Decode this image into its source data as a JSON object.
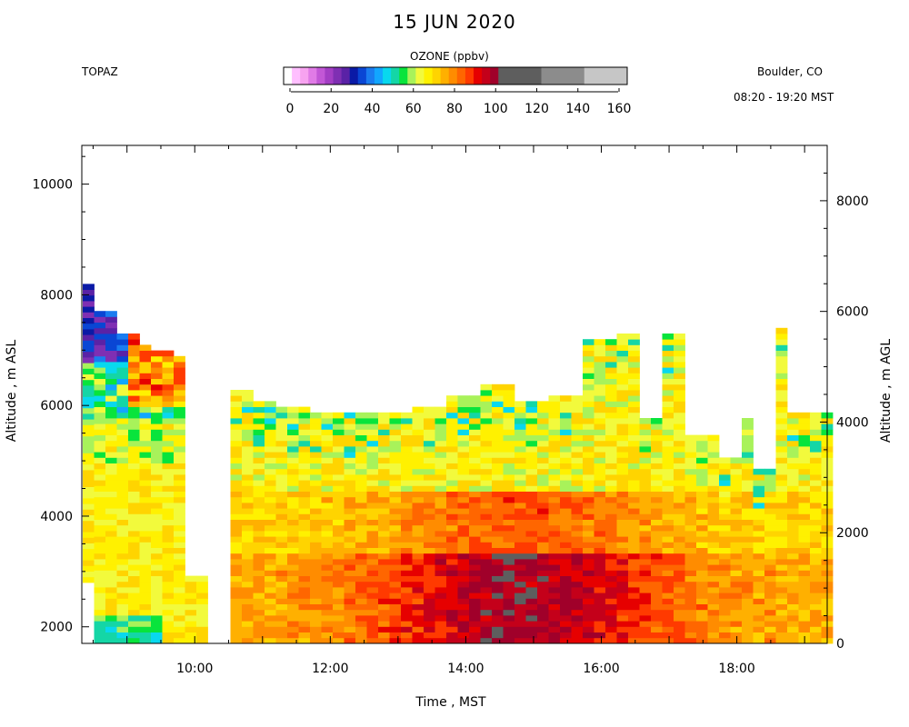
{
  "header": {
    "title": "15 JUN 2020",
    "instrument": "TOPAZ",
    "location": "Boulder, CO",
    "time_range": "08:20 - 19:20 MST"
  },
  "colorbar": {
    "label": "OZONE (ppbv)",
    "ticks": [
      "0",
      "20",
      "40",
      "60",
      "80",
      "100",
      "120",
      "140",
      "160"
    ],
    "colors": [
      "#ffffff",
      "#ffbfff",
      "#f7a3f0",
      "#e07be6",
      "#c257d6",
      "#a33ec4",
      "#7f2fb3",
      "#5a22a6",
      "#0a1aa6",
      "#0a46d4",
      "#1a7cf0",
      "#12a6ff",
      "#08d8ee",
      "#14d6a6",
      "#08e43c",
      "#a8f25a",
      "#f2fa3c",
      "#fff100",
      "#ffd400",
      "#ffb000",
      "#ff8c00",
      "#ff6600",
      "#ff3a00",
      "#e60000",
      "#c4001a",
      "#a0002a",
      "#5e5e5e",
      "#8c8c8c",
      "#c6c6c6"
    ]
  },
  "chart_data": {
    "type": "heatmap",
    "title": "15 JUN 2020",
    "xlabel": "Time , MST",
    "ylabel_left": "Altitude , m ASL",
    "ylabel_right": "Altitude , m AGL",
    "x_range": [
      "08:20",
      "19:20"
    ],
    "x_ticks": [
      "10:00",
      "12:00",
      "14:00",
      "16:00",
      "18:00"
    ],
    "y_left_range": [
      1700,
      10700
    ],
    "y_left_ticks": [
      2000,
      4000,
      6000,
      8000,
      10000
    ],
    "y_right_ticks": [
      0,
      2000,
      4000,
      6000,
      8000
    ],
    "colorbar_range": [
      0,
      160
    ],
    "colorbar_units": "ppbv",
    "profile_top_altitude_m": {
      "08:25": 8200,
      "08:40": 7800,
      "09:00": 7300,
      "09:15": 7100,
      "09:30": 7000,
      "09:45": 6900,
      "10:05": 3000,
      "10:25": null,
      "10:40": 6300,
      "11:00": 6100,
      "11:30": 6000,
      "12:00": 5900,
      "12:30": 5900,
      "13:00": 5900,
      "13:30": 6000,
      "14:00": 6200,
      "14:30": 6400,
      "15:00": 6100,
      "15:30": 6200,
      "16:00": 7200,
      "16:20": 7300,
      "16:45": 5800,
      "17:05": 7300,
      "17:30": 5500,
      "17:50": 5100,
      "18:10": 5800,
      "18:25": 4900,
      "18:35": 7500,
      "19:00": 5900,
      "19:20": 5900
    },
    "description_by_layer": {
      "surface_to_3000m_afternoon_ppbv": "70-95",
      "mid_level_ppbv": "60-75",
      "upper_morning_ppbv": "20-55"
    }
  }
}
